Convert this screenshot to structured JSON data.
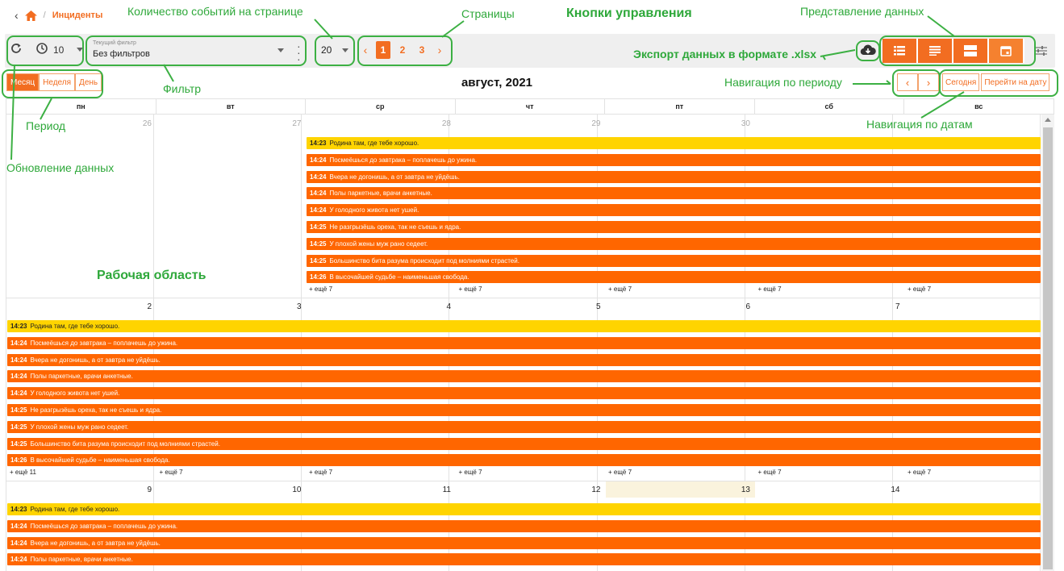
{
  "breadcrumb": {
    "back_icon": "chevron-left-icon",
    "home_icon": "home-icon",
    "separator": "/",
    "current": "Инциденты"
  },
  "toolbar": {
    "refresh_icon": "refresh-icon",
    "timer_icon": "timer-icon",
    "refresh_interval": "10",
    "filter_label": "Текущий фильтр",
    "filter_value": "Без фильтров",
    "page_size": "20",
    "pages": [
      "1",
      "2",
      "3"
    ],
    "active_page": "1",
    "export_icon": "cloud-download-icon",
    "views": [
      "list-icon",
      "text-lines-icon",
      "split-icon",
      "calendar-icon"
    ],
    "active_view": "calendar-icon",
    "settings_icon": "sliders-icon"
  },
  "period": {
    "buttons": [
      "Месяц",
      "Неделя",
      "День"
    ],
    "active": "Месяц"
  },
  "month_title": "август, 2021",
  "nav": {
    "prev": "‹",
    "next": "›",
    "today": "Сегодня",
    "goto": "Перейти на дату"
  },
  "calendar": {
    "weekdays": [
      "пн",
      "вт",
      "ср",
      "чт",
      "пт",
      "сб",
      "вс"
    ],
    "weeks": [
      {
        "days": [
          "26",
          "27",
          "28",
          "29",
          "30",
          "",
          ""
        ],
        "muted": [
          true,
          true,
          true,
          true,
          true,
          false,
          false
        ],
        "more": [
          "",
          "",
          "+ ещё 7",
          "+ ещё 7",
          "+ ещё 7",
          "+ ещё 7",
          "+ ещё 7"
        ]
      },
      {
        "days": [
          "2",
          "3",
          "4",
          "5",
          "6",
          "7",
          ""
        ],
        "muted": [
          false,
          false,
          false,
          false,
          false,
          false,
          false
        ],
        "more": [
          "+ ещё 11",
          "+ ещё 7",
          "+ ещё 7",
          "+ ещё 7",
          "+ ещё 7",
          "+ ещё 7",
          "+ ещё 7"
        ]
      },
      {
        "days": [
          "9",
          "10",
          "11",
          "12",
          "13",
          "14",
          ""
        ],
        "muted": [
          false,
          false,
          false,
          false,
          false,
          false,
          false
        ],
        "more": [
          "",
          "",
          "",
          "",
          "",
          "",
          ""
        ]
      }
    ],
    "today_label": "13",
    "events": [
      {
        "time": "14:23",
        "title": "Родина там, где тебе хорошо.",
        "color": "yellow"
      },
      {
        "time": "14:24",
        "title": "Посмеёшься до завтрака – поплачешь до ужина.",
        "color": "orange"
      },
      {
        "time": "14:24",
        "title": "Вчера не догонишь, а от завтра не уйдёшь.",
        "color": "orange"
      },
      {
        "time": "14:24",
        "title": "Полы паркетные, врачи анкетные.",
        "color": "orange"
      },
      {
        "time": "14:24",
        "title": "У голодного живота нет ушей.",
        "color": "orange"
      },
      {
        "time": "14:25",
        "title": "Не разгрызёшь ореха, так не съешь и ядра.",
        "color": "orange"
      },
      {
        "time": "14:25",
        "title": "У плохой жены муж рано седеет.",
        "color": "orange"
      },
      {
        "time": "14:25",
        "title": "Большинство бита разума происходит под молниями страстей.",
        "color": "orange"
      },
      {
        "time": "14:26",
        "title": "В высочайшей судьбе – наименьшая свобода.",
        "color": "orange"
      }
    ]
  },
  "colors": {
    "accent": "#f26d21",
    "event_orange": "#ff6600",
    "event_yellow": "#ffd400",
    "annotation": "#3cb043",
    "today_bg": "#faf3dd"
  },
  "annotations": {
    "events_per_page": "Количество событий на странице",
    "pages": "Страницы",
    "control_buttons": "Кнопки управления",
    "data_view": "Представление данных",
    "export": "Экспорт данных в формате .xlsx",
    "filter": "Фильтр",
    "period_nav": "Навигация по периоду",
    "period": "Период",
    "date_nav": "Навигация по датам",
    "refresh": "Обновление данных",
    "work_area": "Рабочая область"
  }
}
